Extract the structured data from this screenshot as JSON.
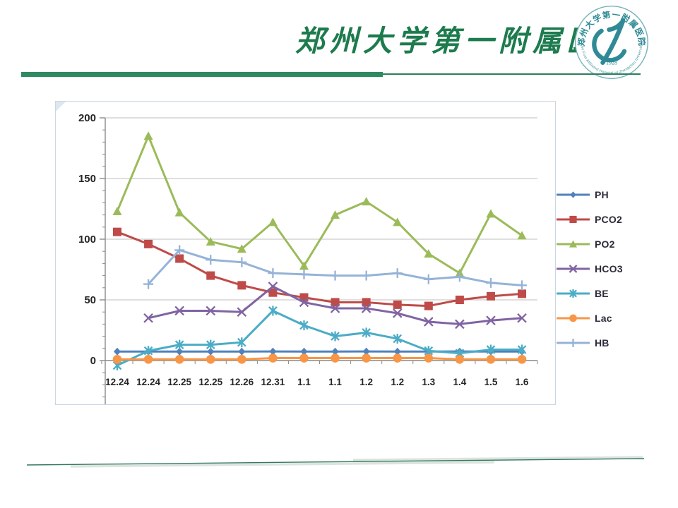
{
  "slide": {
    "title": "郑州大学第一附属医院",
    "title_color": "#1d7b4e",
    "accent_color": "#2e8a60"
  },
  "logo": {
    "ring_text_top": "郑州大学第一附属医院",
    "ring_text_bottom": "The First Affiliated Hospital of Zhengzhou University",
    "year": "1928",
    "color": "#2f8a96"
  },
  "chart_data": {
    "type": "line",
    "title": "",
    "xlabel": "",
    "ylabel": "",
    "categories": [
      "12.24",
      "12.24",
      "12.25",
      "12.25",
      "12.26",
      "12.31",
      "1.1",
      "1.1",
      "1.2",
      "1.2",
      "1.3",
      "1.4",
      "1.5",
      "1.6"
    ],
    "series": [
      {
        "name": "PH",
        "color": "#4F81BD",
        "marker": "diamond",
        "values": [
          7.4,
          7.4,
          7.4,
          7.4,
          7.4,
          7.5,
          7.4,
          7.4,
          7.5,
          7.4,
          7.4,
          7.5,
          7.4,
          7.4
        ]
      },
      {
        "name": "PCO2",
        "color": "#BE4B48",
        "marker": "square",
        "values": [
          106,
          96,
          84,
          70,
          62,
          56,
          52,
          48,
          48,
          46,
          45,
          50,
          53,
          55
        ]
      },
      {
        "name": "PO2",
        "color": "#9BBB59",
        "marker": "triangle",
        "values": [
          123,
          185,
          122,
          98,
          92,
          114,
          78,
          120,
          131,
          114,
          88,
          72,
          121,
          103
        ]
      },
      {
        "name": "HCO3",
        "color": "#8064A2",
        "marker": "x",
        "values": [
          null,
          35,
          41,
          41,
          40,
          61,
          48,
          43,
          43,
          39,
          32,
          30,
          33,
          35
        ]
      },
      {
        "name": "BE",
        "color": "#4BACC6",
        "marker": "asterisk",
        "values": [
          -4,
          8,
          13,
          13,
          15,
          41,
          29,
          20,
          23,
          18,
          8,
          6,
          9,
          9
        ]
      },
      {
        "name": "Lac",
        "color": "#F79646",
        "marker": "circle",
        "values": [
          1,
          1,
          1,
          1,
          1,
          2,
          2,
          2,
          2,
          2,
          2,
          1,
          1,
          1
        ]
      },
      {
        "name": "HB",
        "color": "#95B3D7",
        "marker": "plus",
        "values": [
          null,
          63,
          91,
          83,
          81,
          72,
          71,
          70,
          70,
          72,
          67,
          69,
          64,
          62
        ]
      }
    ],
    "ylim": [
      -35,
      200
    ],
    "yticks": [
      0,
      50,
      100,
      150,
      200
    ],
    "minor_tick_step": 10,
    "grid": true,
    "gridline_color": "#bfbfbf",
    "axis_color": "#8a8a8a",
    "legend_position": "right"
  }
}
